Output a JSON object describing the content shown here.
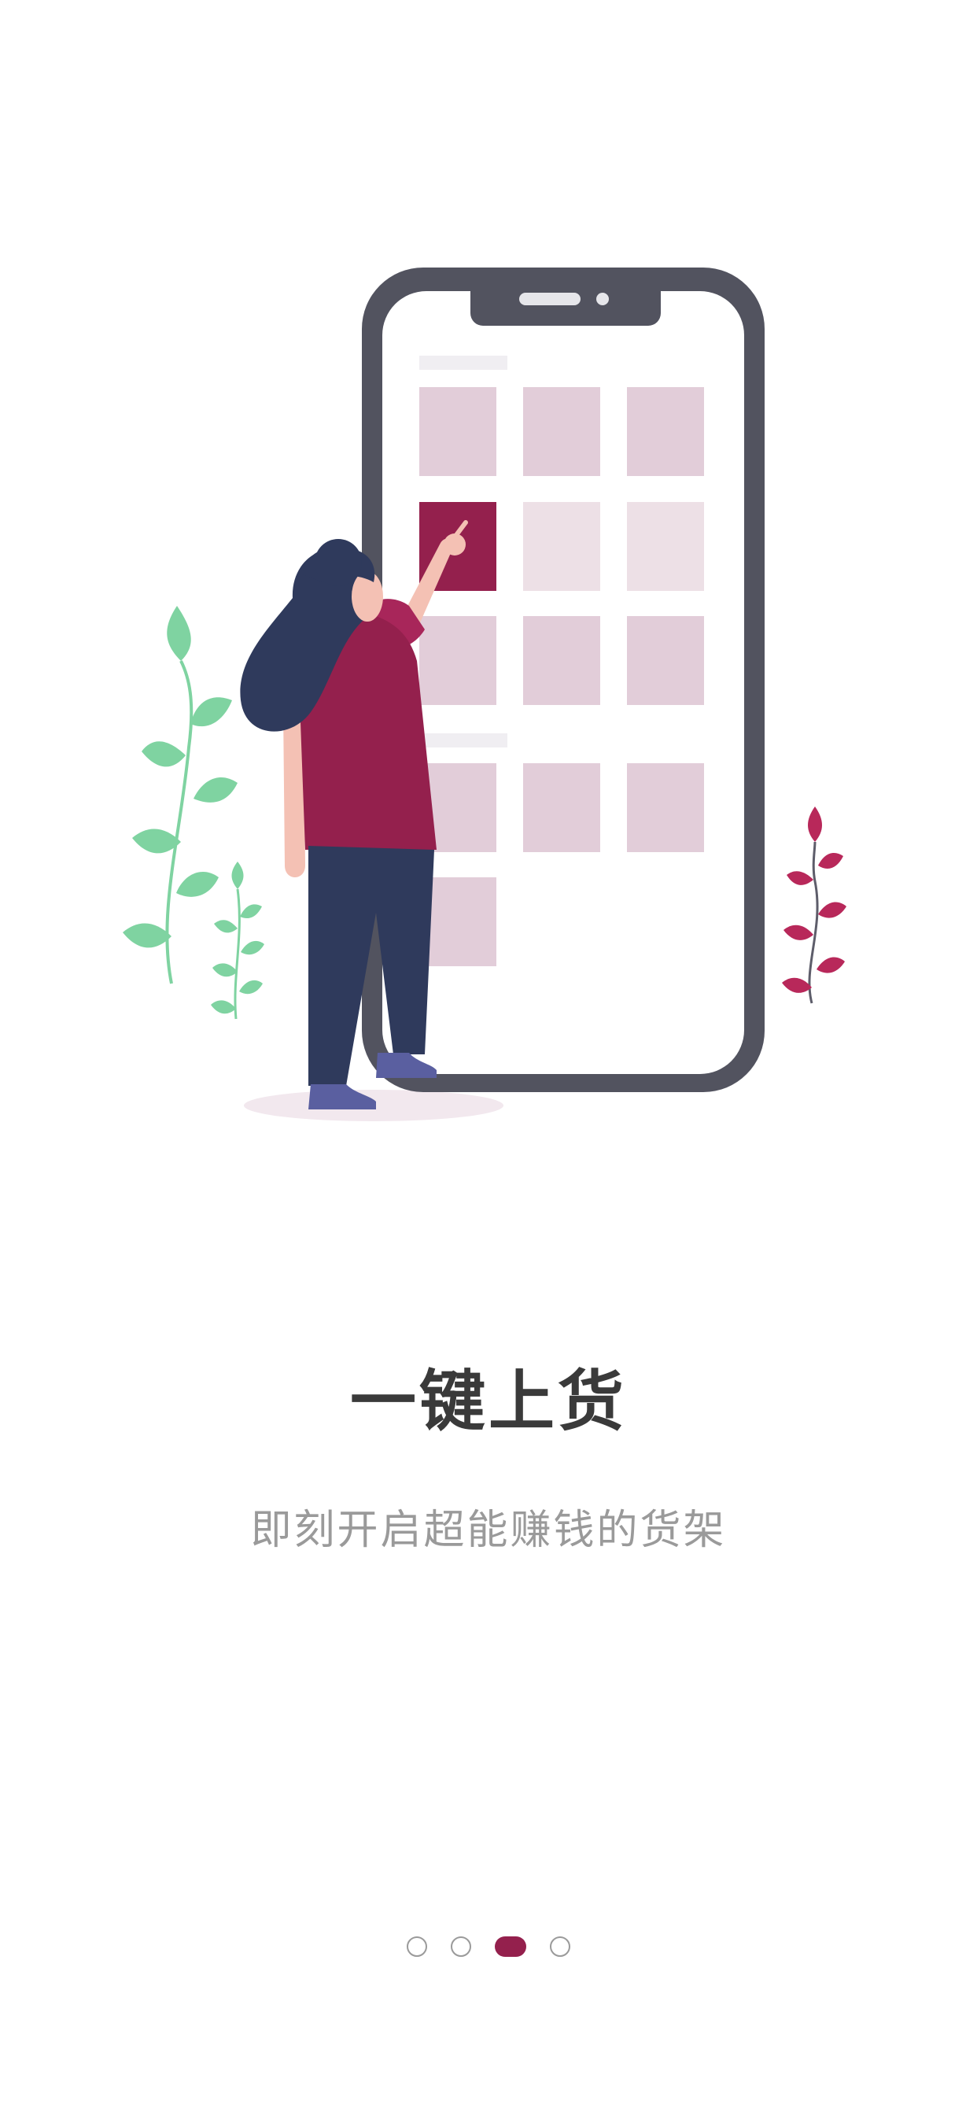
{
  "onboarding": {
    "title": "一键上货",
    "subtitle": "即刻开启超能赚钱的货架",
    "pages": [
      {
        "label": "page-1",
        "active": false
      },
      {
        "label": "page-2",
        "active": false
      },
      {
        "label": "page-3",
        "active": true
      },
      {
        "label": "page-4",
        "active": false
      }
    ],
    "current_page": 3,
    "total_pages": 4
  },
  "colors": {
    "accent": "#94204d",
    "phone_frame": "#52535f",
    "tile": "#e2cdd9",
    "tile_light": "#ede0e6",
    "plant_green": "#7fd3a1",
    "plant_red": "#b8285a",
    "hair": "#2f3a5c",
    "skin": "#f4c1b4",
    "dot_inactive": "#9a9a9a"
  },
  "icons": {
    "illustration": "woman-selecting-product-on-phone"
  }
}
